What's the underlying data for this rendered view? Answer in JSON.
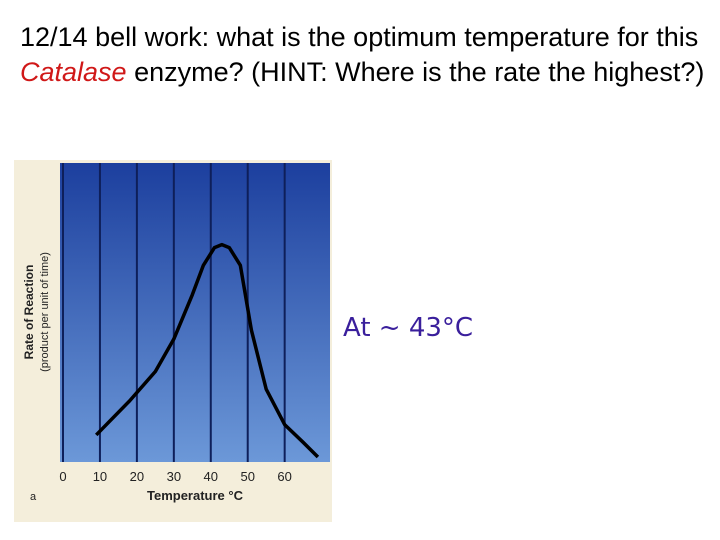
{
  "chart_data": {
    "type": "line",
    "title": [
      "12/14 bell work: what is the optimum temperature for this ",
      "Catalase",
      " enzyme?  (HINT: Where is the rate the highest?)"
    ],
    "annotation": "At ~ 43°C",
    "panel_label": "a",
    "x_label": "Temperature °C",
    "y_label": [
      "Rate of Reaction",
      "(product per unit of time)"
    ],
    "x": [
      9,
      18,
      25,
      30,
      35,
      38,
      41,
      43,
      45,
      48,
      51,
      55,
      60,
      65,
      69
    ],
    "series": [
      {
        "color": "#000000",
        "values": [
          0.85,
          2.0,
          3.0,
          4.1,
          5.6,
          6.6,
          7.2,
          7.3,
          7.2,
          6.6,
          4.4,
          2.4,
          1.2,
          0.6,
          0.1
        ]
      }
    ],
    "xlim": [
      0,
      72
    ],
    "xticks": [
      0,
      10,
      20,
      30,
      40,
      50,
      60
    ],
    "ylim": [
      0,
      10
    ],
    "grid": true
  }
}
